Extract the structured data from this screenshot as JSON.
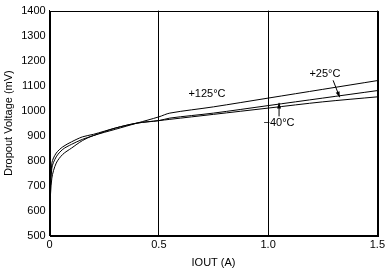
{
  "chart_data": {
    "type": "line",
    "x_label": "IOUT (A)",
    "y_label": "Dropout Voltage (mV)",
    "x": [
      0,
      0.01,
      0.03,
      0.06,
      0.1,
      0.15,
      0.2,
      0.3,
      0.4,
      0.5,
      0.55,
      0.75,
      1.0,
      1.25,
      1.5
    ],
    "series": [
      {
        "name": "+125°C",
        "color": "#000000",
        "values": [
          600,
          730,
          790,
          825,
          850,
          880,
          900,
          925,
          950,
          975,
          990,
          1015,
          1050,
          1085,
          1120
        ]
      },
      {
        "name": "+25°C",
        "color": "#000000",
        "values": [
          610,
          770,
          815,
          845,
          865,
          885,
          900,
          930,
          950,
          960,
          970,
          990,
          1020,
          1050,
          1080
        ]
      },
      {
        "name": "−40°C",
        "color": "#000000",
        "values": [
          620,
          790,
          830,
          855,
          875,
          895,
          905,
          930,
          950,
          960,
          965,
          985,
          1010,
          1035,
          1055
        ]
      }
    ],
    "xlim": [
      0,
      1.5
    ],
    "xticks": [
      0,
      0.5,
      {
        "value": 1,
        "label": "1.0"
      },
      1.5
    ],
    "ylim": [
      500,
      1400
    ],
    "yticks": [
      500,
      600,
      700,
      800,
      900,
      1000,
      1100,
      1200,
      1300,
      1400
    ],
    "grid": "x",
    "legend": "none"
  }
}
